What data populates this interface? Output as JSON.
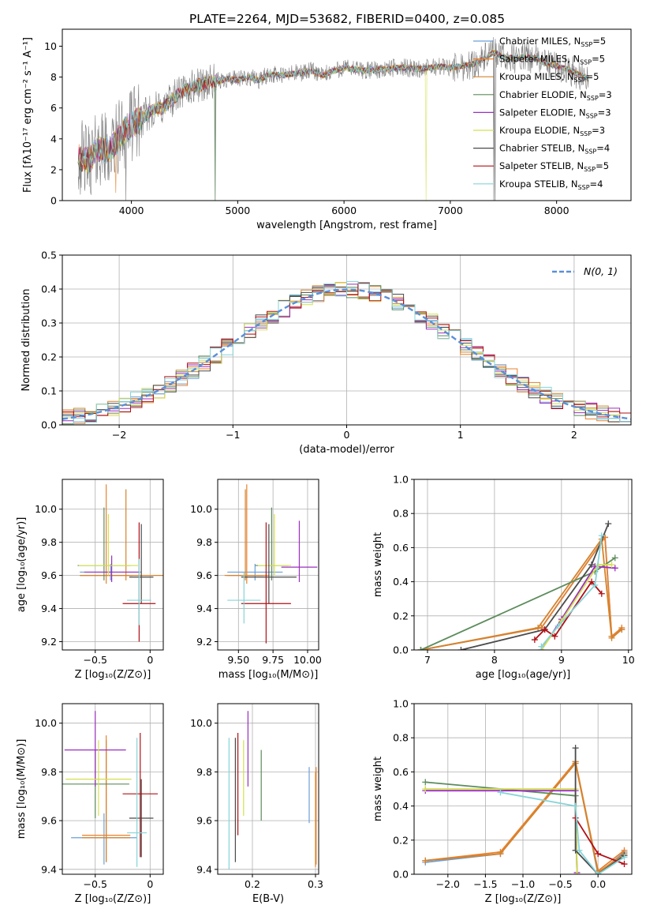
{
  "figure_title": "PLATE=2264, MJD=53682, FIBERID=0400, z=0.085",
  "colors": {
    "axes": "#000000",
    "grid": "#b0b0b0",
    "data": "#808080",
    "gaussian": "#5a8fd8",
    "series": [
      "#6a9fd8",
      "#e8812e",
      "#d4832c",
      "#5c8c5c",
      "#9b2fbf",
      "#d4e04f",
      "#4a4a4a",
      "#b01016",
      "#86d4d8"
    ]
  },
  "legend_spectrum": {
    "series": [
      {
        "main": "Chabrier MILES, N",
        "sub": "SSP",
        "tail": "=5"
      },
      {
        "main": "Salpeter MILES, N",
        "sub": "SSP",
        "tail": "=5"
      },
      {
        "main": "Kroupa MILES, N",
        "sub": "SSP",
        "tail": "=5"
      },
      {
        "main": "Chabrier ELODIE, N",
        "sub": "SSP",
        "tail": "=3"
      },
      {
        "main": "Salpeter ELODIE, N",
        "sub": "SSP",
        "tail": "=3"
      },
      {
        "main": "Kroupa ELODIE, N",
        "sub": "SSP",
        "tail": "=3"
      },
      {
        "main": "Chabrier STELIB, N",
        "sub": "SSP",
        "tail": "=4"
      },
      {
        "main": "Salpeter STELIB, N",
        "sub": "SSP",
        "tail": "=5"
      },
      {
        "main": "Kroupa STELIB, N",
        "sub": "SSP",
        "tail": "=4"
      }
    ]
  },
  "chart_data": [
    {
      "id": "spectrum",
      "type": "line",
      "xlabel": "wavelength [Angstrom, rest frame]",
      "ylabel": "Flux [fλ10⁻¹⁷ erg cm⁻² s⁻¹ A⁻¹]",
      "xlim": [
        3350,
        8700
      ],
      "ylim": [
        0,
        11.1
      ],
      "xticks": [
        4000,
        5000,
        6000,
        7000,
        8000
      ],
      "yticks": [
        0,
        2,
        4,
        6,
        8,
        10
      ],
      "grid": false,
      "legend": "right",
      "continuum": [
        [
          3500,
          2.8
        ],
        [
          3600,
          2.6
        ],
        [
          3700,
          3.4
        ],
        [
          3800,
          3.2
        ],
        [
          3900,
          4.3
        ],
        [
          4000,
          4.9
        ],
        [
          4100,
          5.3
        ],
        [
          4200,
          5.9
        ],
        [
          4300,
          6.0
        ],
        [
          4400,
          6.7
        ],
        [
          4500,
          7.1
        ],
        [
          4600,
          7.4
        ],
        [
          4700,
          7.6
        ],
        [
          4800,
          7.7
        ],
        [
          4900,
          7.9
        ],
        [
          5000,
          7.8
        ],
        [
          5100,
          8.0
        ],
        [
          5200,
          7.8
        ],
        [
          5300,
          8.2
        ],
        [
          5400,
          8.1
        ],
        [
          5500,
          8.2
        ],
        [
          5600,
          8.3
        ],
        [
          5700,
          8.4
        ],
        [
          5800,
          8.1
        ],
        [
          5900,
          8.4
        ],
        [
          6000,
          8.6
        ],
        [
          6100,
          8.5
        ],
        [
          6200,
          8.4
        ],
        [
          6300,
          8.5
        ],
        [
          6400,
          8.5
        ],
        [
          6500,
          8.6
        ],
        [
          6600,
          8.6
        ],
        [
          6700,
          8.5
        ],
        [
          6800,
          8.6
        ],
        [
          6900,
          8.7
        ],
        [
          7000,
          8.6
        ],
        [
          7100,
          8.7
        ],
        [
          7200,
          8.8
        ],
        [
          7300,
          9.1
        ],
        [
          7400,
          9.6
        ],
        [
          7500,
          9.3
        ],
        [
          7600,
          9.2
        ],
        [
          7700,
          9.3
        ],
        [
          7800,
          9.2
        ],
        [
          7900,
          8.9
        ],
        [
          8000,
          8.7
        ],
        [
          8100,
          8.5
        ],
        [
          8200,
          8.2
        ],
        [
          8300,
          7.9
        ]
      ],
      "model_range": [
        3500,
        8300
      ],
      "noise": {
        "high_start": 3500,
        "high_end": 4100,
        "mid_end": 4800,
        "low_end": 7000,
        "high_amp": 2.5,
        "mid_amp": 1.2,
        "low_amp": 0.6,
        "tail_amp": 1.0
      },
      "data_spikes": [
        [
          3950,
          0
        ],
        [
          4330,
          7.0
        ],
        [
          4790,
          0
        ],
        [
          7410,
          0
        ]
      ],
      "model_dips": [
        [
          3850,
          1,
          0.5
        ],
        [
          4790,
          3,
          0
        ],
        [
          6770,
          5,
          0
        ],
        [
          7420,
          6,
          0
        ]
      ]
    },
    {
      "id": "residuals",
      "type": "histogram",
      "xlabel": "(data-model)/error",
      "ylabel": "Normed distribution",
      "xlim": [
        -2.5,
        2.5
      ],
      "ylim": [
        0,
        0.5
      ],
      "xticks": [
        -2,
        -1,
        0,
        1,
        2
      ],
      "yticks": [
        0.0,
        0.1,
        0.2,
        0.3,
        0.4,
        0.5
      ],
      "grid": true,
      "legend": "top-right",
      "gaussian_label": "N(0, 1)",
      "bin_width": 0.1
    },
    {
      "id": "age_vs_Z",
      "type": "errorbar",
      "xlabel": "Z [log₁₀(Z/Z⊙)]",
      "ylabel": "age  [log₁₀(age/yr)]",
      "xlim": [
        -0.8,
        0.12
      ],
      "ylim": [
        9.15,
        10.18
      ],
      "xticks": [
        -0.5,
        0.0
      ],
      "yticks": [
        9.2,
        9.4,
        9.6,
        9.8,
        10.0
      ],
      "grid": true,
      "points": [
        {
          "x": -0.36,
          "y": 9.62,
          "xerr": 0.28,
          "ylo": 9.57,
          "yhi": 9.67
        },
        {
          "x": -0.4,
          "y": 9.6,
          "xerr": 0.24,
          "ylo": 9.55,
          "yhi": 10.15
        },
        {
          "x": -0.22,
          "y": 9.6,
          "xerr": 0.42,
          "ylo": 9.57,
          "yhi": 10.12
        },
        {
          "x": -0.42,
          "y": 9.66,
          "xerr": 0.24,
          "ylo": 9.57,
          "yhi": 10.01
        },
        {
          "x": -0.35,
          "y": 9.62,
          "xerr": 0.25,
          "ylo": 9.56,
          "yhi": 9.72
        },
        {
          "x": -0.38,
          "y": 9.66,
          "xerr": 0.27,
          "ylo": 9.6,
          "yhi": 9.97
        },
        {
          "x": -0.08,
          "y": 9.59,
          "xerr": 0.11,
          "ylo": 9.43,
          "yhi": 9.91
        },
        {
          "x": -0.1,
          "y": 9.43,
          "xerr": 0.15,
          "ylo": 9.2,
          "yhi": 9.92
        },
        {
          "x": -0.1,
          "y": 9.45,
          "xerr": 0.11,
          "ylo": 9.3,
          "yhi": 9.7
        }
      ]
    },
    {
      "id": "age_vs_mass",
      "type": "errorbar",
      "xlabel": "mass [log₁₀(M/M⊙)]",
      "ylabel": "",
      "xlim": [
        9.35,
        10.08
      ],
      "ylim": [
        9.15,
        10.18
      ],
      "xticks": [
        9.5,
        9.75,
        10.0
      ],
      "yticks": [
        9.2,
        9.4,
        9.6,
        9.8,
        10.0
      ],
      "grid": true,
      "points": [
        {
          "x": 9.62,
          "y": 9.62,
          "xerr": 0.2,
          "ylo": 9.57,
          "yhi": 9.67
        },
        {
          "x": 9.56,
          "y": 9.6,
          "xerr": 0.16,
          "ylo": 9.55,
          "yhi": 10.15
        },
        {
          "x": 9.55,
          "y": 9.6,
          "xerr": 0.13,
          "ylo": 9.57,
          "yhi": 10.12
        },
        {
          "x": 9.74,
          "y": 9.66,
          "xerr": 0.12,
          "ylo": 9.57,
          "yhi": 10.01
        },
        {
          "x": 9.94,
          "y": 9.65,
          "xerr": 0.13,
          "ylo": 9.56,
          "yhi": 9.93
        },
        {
          "x": 9.76,
          "y": 9.66,
          "xerr": 0.12,
          "ylo": 9.6,
          "yhi": 9.97
        },
        {
          "x": 9.72,
          "y": 9.59,
          "xerr": 0.2,
          "ylo": 9.43,
          "yhi": 9.91
        },
        {
          "x": 9.7,
          "y": 9.43,
          "xerr": 0.18,
          "ylo": 9.19,
          "yhi": 9.92
        },
        {
          "x": 9.54,
          "y": 9.45,
          "xerr": 0.12,
          "ylo": 9.31,
          "yhi": 9.62
        }
      ]
    },
    {
      "id": "weight_vs_age",
      "type": "line",
      "xlabel": "age  [log₁₀(age/yr)]",
      "ylabel": "mass weight",
      "xlim": [
        6.8,
        10.05
      ],
      "ylim": [
        0,
        1.0
      ],
      "xticks": [
        7,
        8,
        9,
        10
      ],
      "yticks": [
        0.0,
        0.2,
        0.4,
        0.6,
        0.8,
        1.0
      ],
      "grid": true,
      "series": [
        {
          "points": [
            [
              6.9,
              0.0
            ],
            [
              8.7,
              0.13
            ],
            [
              9.65,
              0.66
            ],
            [
              9.75,
              0.08
            ],
            [
              9.9,
              0.12
            ]
          ]
        },
        {
          "points": [
            [
              6.9,
              0.0
            ],
            [
              8.7,
              0.13
            ],
            [
              9.65,
              0.66
            ],
            [
              9.75,
              0.08
            ],
            [
              9.9,
              0.13
            ]
          ]
        },
        {
          "points": [
            [
              6.9,
              0.0
            ],
            [
              8.65,
              0.13
            ],
            [
              9.6,
              0.65
            ],
            [
              9.75,
              0.07
            ],
            [
              9.9,
              0.12
            ]
          ]
        },
        {
          "points": [
            [
              6.9,
              0.0
            ],
            [
              9.5,
              0.46
            ],
            [
              9.8,
              0.54
            ]
          ]
        },
        {
          "points": [
            [
              8.7,
              0.0
            ],
            [
              9.0,
              0.18
            ],
            [
              9.5,
              0.49
            ],
            [
              9.8,
              0.48
            ]
          ]
        },
        {
          "points": [
            [
              8.7,
              0.0
            ],
            [
              9.0,
              0.17
            ],
            [
              9.55,
              0.5
            ],
            [
              9.75,
              0.5
            ]
          ]
        },
        {
          "points": [
            [
              7.5,
              0.0
            ],
            [
              8.75,
              0.12
            ],
            [
              9.45,
              0.5
            ],
            [
              9.7,
              0.74
            ]
          ]
        },
        {
          "points": [
            [
              8.6,
              0.06
            ],
            [
              8.75,
              0.12
            ],
            [
              8.9,
              0.08
            ],
            [
              9.45,
              0.4
            ],
            [
              9.6,
              0.33
            ]
          ]
        },
        {
          "points": [
            [
              8.7,
              0.02
            ],
            [
              8.95,
              0.14
            ],
            [
              9.5,
              0.38
            ],
            [
              9.6,
              0.67
            ]
          ]
        }
      ]
    },
    {
      "id": "mass_vs_Z",
      "type": "errorbar",
      "xlabel": "Z [log₁₀(Z/Z⊙)]",
      "ylabel": "mass [log₁₀(M/M⊙)]",
      "xlim": [
        -0.8,
        0.12
      ],
      "ylim": [
        9.38,
        10.08
      ],
      "xticks": [
        -0.5,
        0.0
      ],
      "yticks": [
        9.4,
        9.6,
        9.8,
        10.0
      ],
      "grid": true,
      "points": [
        {
          "x": -0.42,
          "y": 9.53,
          "xerr": 0.3,
          "ylo": 9.42,
          "yhi": 9.63
        },
        {
          "x": -0.4,
          "y": 9.54,
          "xerr": 0.22,
          "ylo": 9.43,
          "yhi": 9.95
        },
        {
          "x": -0.4,
          "y": 9.53,
          "xerr": 0.22,
          "ylo": 9.43,
          "yhi": 9.93
        },
        {
          "x": -0.5,
          "y": 9.75,
          "xerr": 0.31,
          "ylo": 9.61,
          "yhi": 9.89
        },
        {
          "x": -0.5,
          "y": 9.89,
          "xerr": 0.28,
          "ylo": 9.74,
          "yhi": 10.05
        },
        {
          "x": -0.47,
          "y": 9.77,
          "xerr": 0.3,
          "ylo": 9.62,
          "yhi": 9.93
        },
        {
          "x": -0.08,
          "y": 9.61,
          "xerr": 0.11,
          "ylo": 9.45,
          "yhi": 9.77
        },
        {
          "x": -0.09,
          "y": 9.71,
          "xerr": 0.16,
          "ylo": 9.45,
          "yhi": 9.96
        },
        {
          "x": -0.12,
          "y": 9.55,
          "xerr": 0.09,
          "ylo": 9.41,
          "yhi": 9.94
        }
      ]
    },
    {
      "id": "mass_vs_ebv",
      "type": "errorbar",
      "xlabel": "E(B-V)",
      "ylabel": "",
      "xlim": [
        0.145,
        0.305
      ],
      "ylim": [
        9.38,
        10.08
      ],
      "xticks": [
        0.2,
        0.3
      ],
      "yticks": [
        9.4,
        9.6,
        9.8,
        10.0
      ],
      "grid": true,
      "points": [
        {
          "x": 0.29,
          "y": 9.7,
          "ylo": 9.59,
          "yhi": 9.82
        },
        {
          "x": 0.301,
          "y": 9.64,
          "ylo": 9.42,
          "yhi": 9.82
        },
        {
          "x": 0.3,
          "y": 9.62,
          "ylo": 9.41,
          "yhi": 9.8
        },
        {
          "x": 0.214,
          "y": 9.75,
          "ylo": 9.6,
          "yhi": 9.89
        },
        {
          "x": 0.193,
          "y": 9.89,
          "ylo": 9.74,
          "yhi": 10.05
        },
        {
          "x": 0.186,
          "y": 9.77,
          "ylo": 9.62,
          "yhi": 9.93
        },
        {
          "x": 0.173,
          "y": 9.68,
          "ylo": 9.43,
          "yhi": 9.94
        },
        {
          "x": 0.177,
          "y": 9.71,
          "ylo": 9.54,
          "yhi": 9.96
        },
        {
          "x": 0.163,
          "y": 9.65,
          "ylo": 9.4,
          "yhi": 9.94
        }
      ]
    },
    {
      "id": "weight_vs_Z",
      "type": "line",
      "xlabel": "Z [log₁₀(Z/Z⊙)]",
      "ylabel": "mass weight",
      "xlim": [
        -2.45,
        0.45
      ],
      "ylim": [
        0,
        1.0
      ],
      "xticks": [
        -2.0,
        -1.5,
        -1.0,
        -0.5,
        0.0
      ],
      "yticks": [
        0.0,
        0.2,
        0.4,
        0.6,
        0.8,
        1.0
      ],
      "grid": true,
      "series": [
        {
          "points": [
            [
              -2.3,
              0.07
            ],
            [
              -1.3,
              0.12
            ],
            [
              -0.3,
              0.66
            ],
            [
              0.0,
              0.0
            ],
            [
              0.35,
              0.13
            ]
          ]
        },
        {
          "points": [
            [
              -2.3,
              0.08
            ],
            [
              -1.3,
              0.13
            ],
            [
              -0.3,
              0.66
            ],
            [
              0.0,
              0.02
            ],
            [
              0.35,
              0.14
            ]
          ]
        },
        {
          "points": [
            [
              -2.3,
              0.08
            ],
            [
              -1.3,
              0.12
            ],
            [
              -0.3,
              0.65
            ],
            [
              0.0,
              0.01
            ],
            [
              0.35,
              0.12
            ]
          ]
        },
        {
          "points": [
            [
              -2.3,
              0.54
            ],
            [
              -0.3,
              0.46
            ],
            [
              -0.28,
              0.0
            ]
          ]
        },
        {
          "points": [
            [
              -2.3,
              0.49
            ],
            [
              -0.3,
              0.49
            ],
            [
              -0.28,
              0.01
            ]
          ]
        },
        {
          "points": [
            [
              -2.3,
              0.5
            ],
            [
              -0.3,
              0.5
            ],
            [
              -0.28,
              0.0
            ]
          ]
        },
        {
          "points": [
            [
              -0.3,
              0.74
            ],
            [
              -0.3,
              0.14
            ],
            [
              0.0,
              0.0
            ],
            [
              0.35,
              0.11
            ]
          ]
        },
        {
          "points": [
            [
              -0.3,
              0.33
            ],
            [
              0.0,
              0.12
            ],
            [
              0.35,
              0.06
            ]
          ]
        },
        {
          "points": [
            [
              -1.3,
              0.48
            ],
            [
              -0.3,
              0.4
            ],
            [
              -0.25,
              0.14
            ],
            [
              0.0,
              0.0
            ],
            [
              0.35,
              0.1
            ]
          ]
        }
      ]
    }
  ]
}
